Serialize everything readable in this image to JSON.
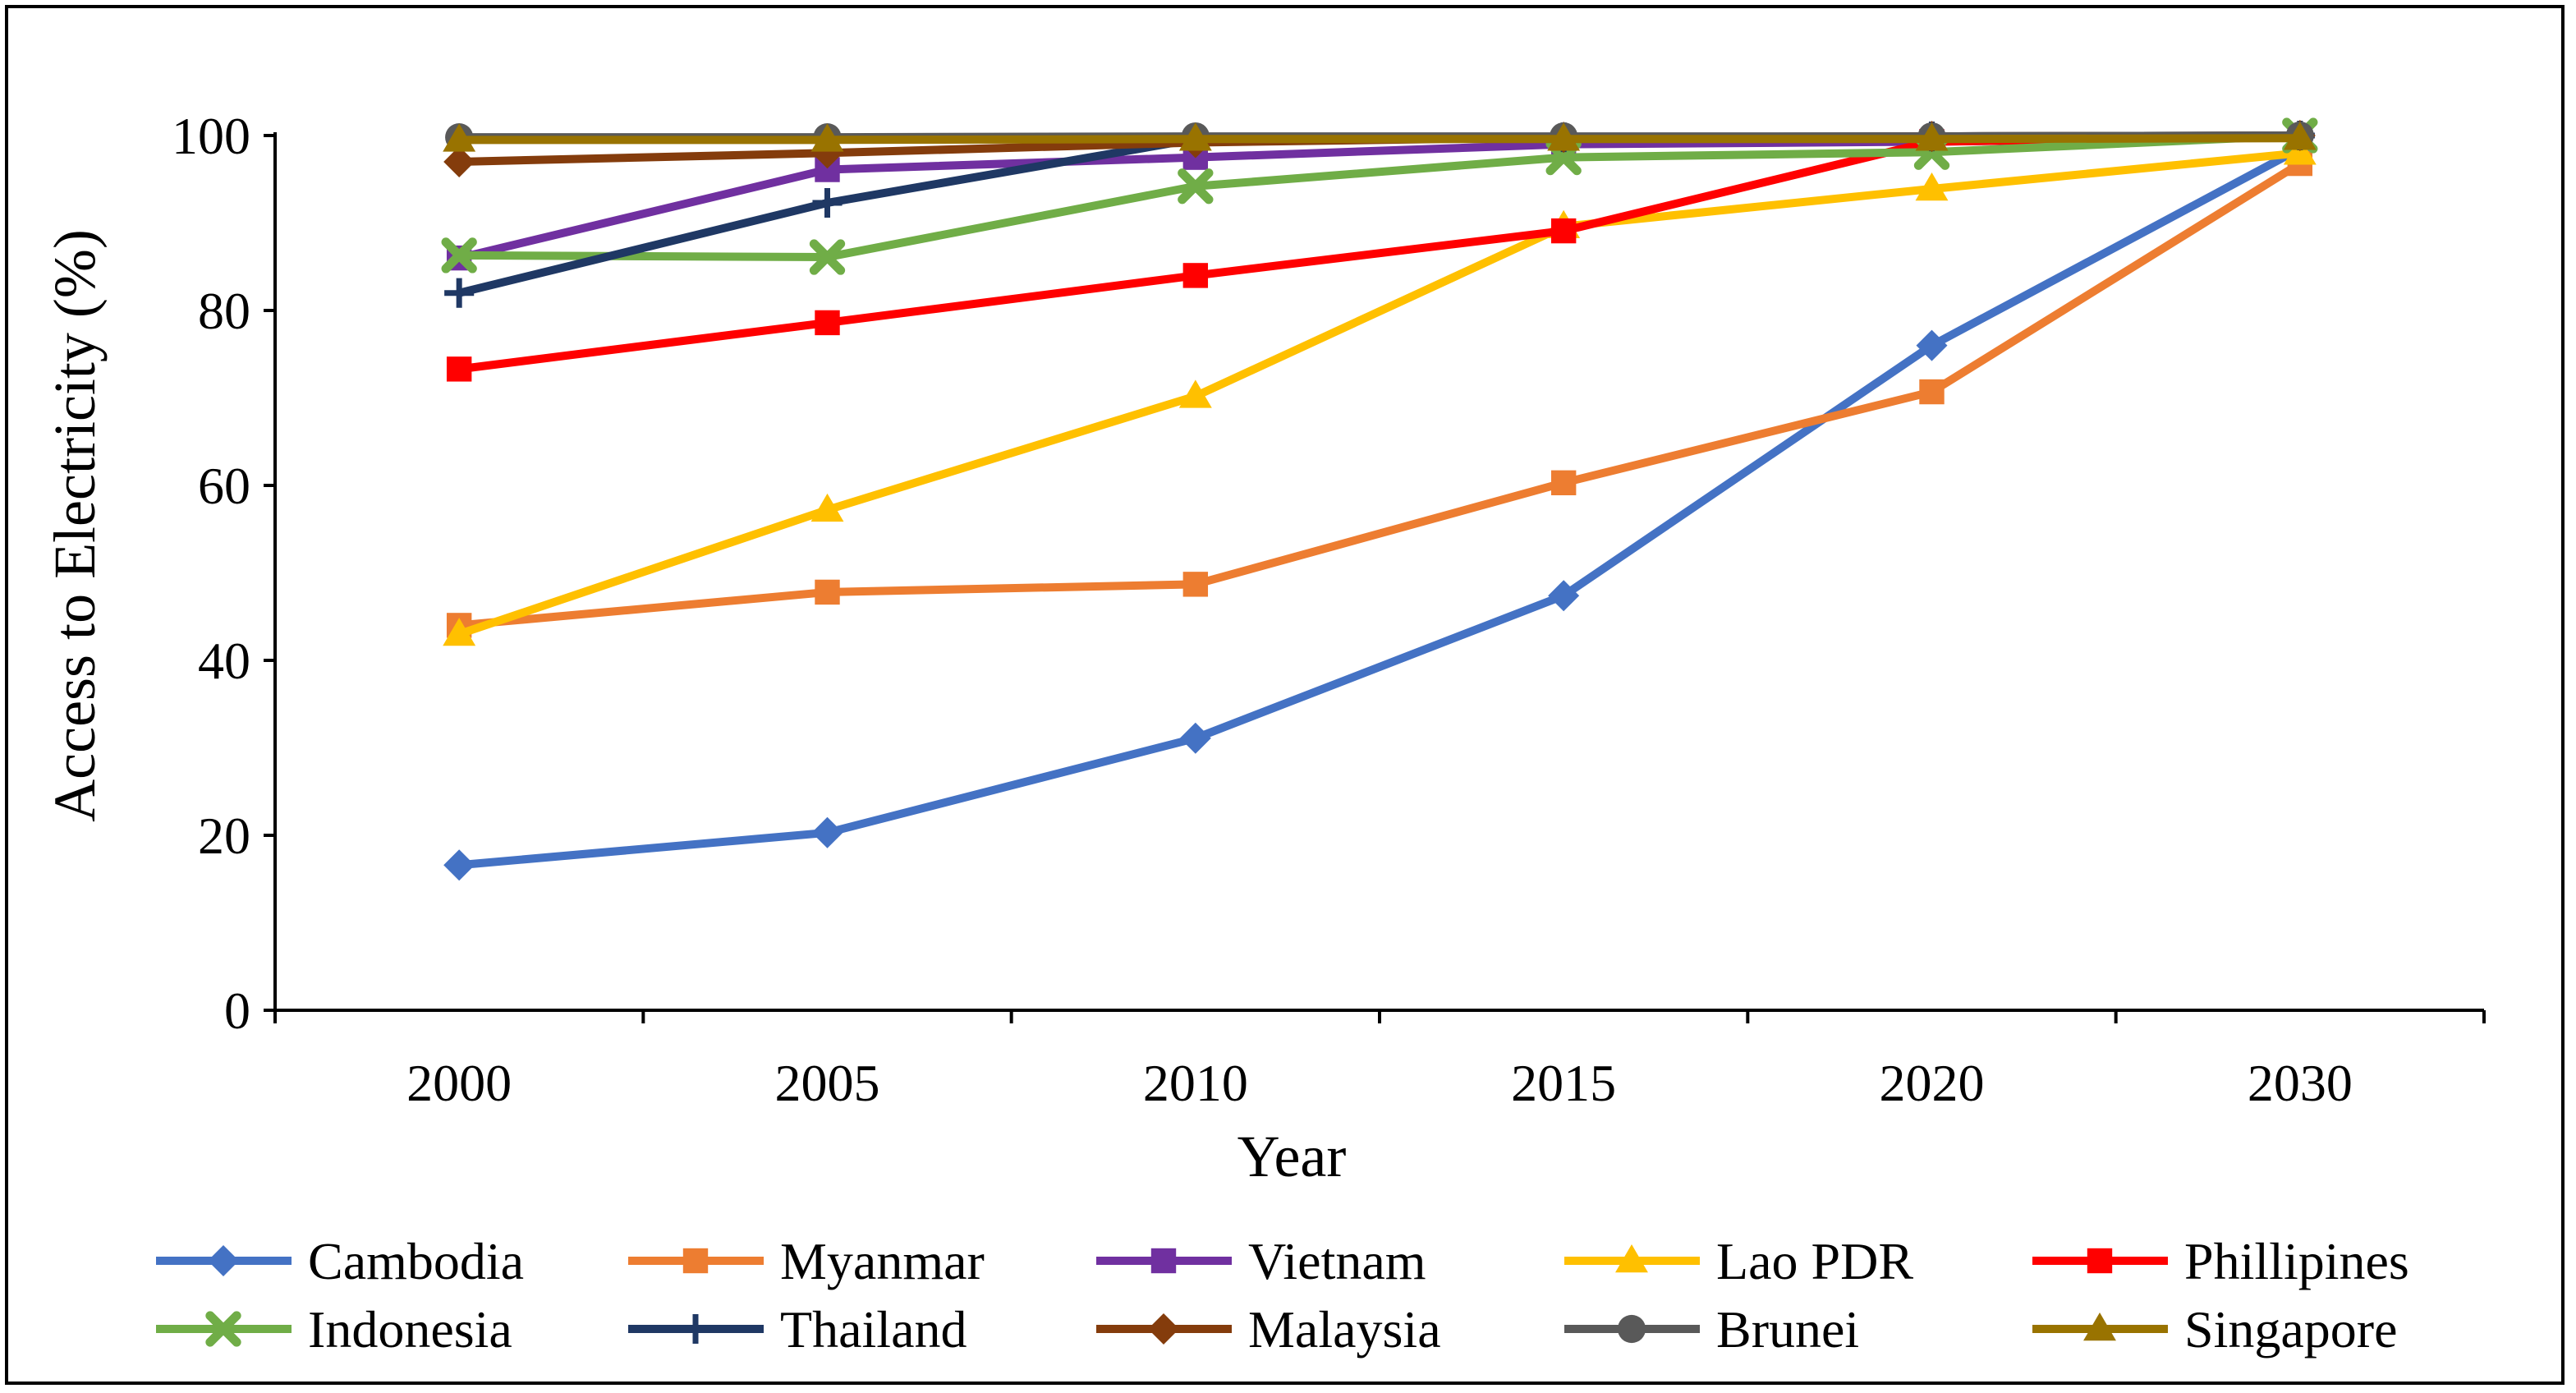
{
  "chart_data": {
    "type": "line",
    "title": "",
    "xlabel": "Year",
    "ylabel": "Access to Electricity (%)",
    "categories": [
      "2000",
      "2005",
      "2010",
      "2015",
      "2020",
      "2030"
    ],
    "ylim": [
      0,
      100
    ],
    "yticks": [
      "0",
      "20",
      "40",
      "60",
      "80",
      "100"
    ],
    "legend_position": "bottom",
    "series": [
      {
        "name": "Cambodia",
        "color": "#4472C4",
        "marker": "diamond",
        "values": [
          16.6,
          20.3,
          31.1,
          47.4,
          76.0,
          98.5
        ]
      },
      {
        "name": "Myanmar",
        "color": "#ED7D31",
        "marker": "square",
        "values": [
          44.0,
          47.8,
          48.7,
          60.3,
          70.7,
          96.8
        ]
      },
      {
        "name": "Vietnam",
        "color": "#7030A0",
        "marker": "square",
        "values": [
          86.0,
          96.1,
          97.5,
          99.0,
          99.3,
          99.8
        ]
      },
      {
        "name": "Lao PDR",
        "color": "#FFC000",
        "marker": "triangle",
        "values": [
          43.0,
          57.2,
          70.2,
          89.6,
          93.9,
          98.0
        ]
      },
      {
        "name": "Phillipines",
        "color": "#FF0000",
        "marker": "square",
        "values": [
          73.3,
          78.6,
          84.0,
          89.1,
          99.3,
          99.9
        ]
      },
      {
        "name": "Indonesia",
        "color": "#70AD47",
        "marker": "x",
        "values": [
          86.3,
          86.1,
          94.2,
          97.5,
          98.1,
          100.0
        ]
      },
      {
        "name": "Thailand",
        "color": "#1F3864",
        "marker": "plus",
        "values": [
          82.0,
          92.3,
          99.6,
          99.8,
          99.9,
          100.0
        ]
      },
      {
        "name": "Malaysia",
        "color": "#843C0C",
        "marker": "diamond",
        "values": [
          97.0,
          98.0,
          99.2,
          99.8,
          99.9,
          100.0
        ]
      },
      {
        "name": "Brunei",
        "color": "#595959",
        "marker": "circle",
        "values": [
          99.8,
          99.8,
          99.9,
          99.9,
          99.9,
          100.0
        ]
      },
      {
        "name": "Singapore",
        "color": "#997300",
        "marker": "triangle",
        "values": [
          99.5,
          99.5,
          99.6,
          99.6,
          99.6,
          99.7
        ]
      }
    ]
  }
}
